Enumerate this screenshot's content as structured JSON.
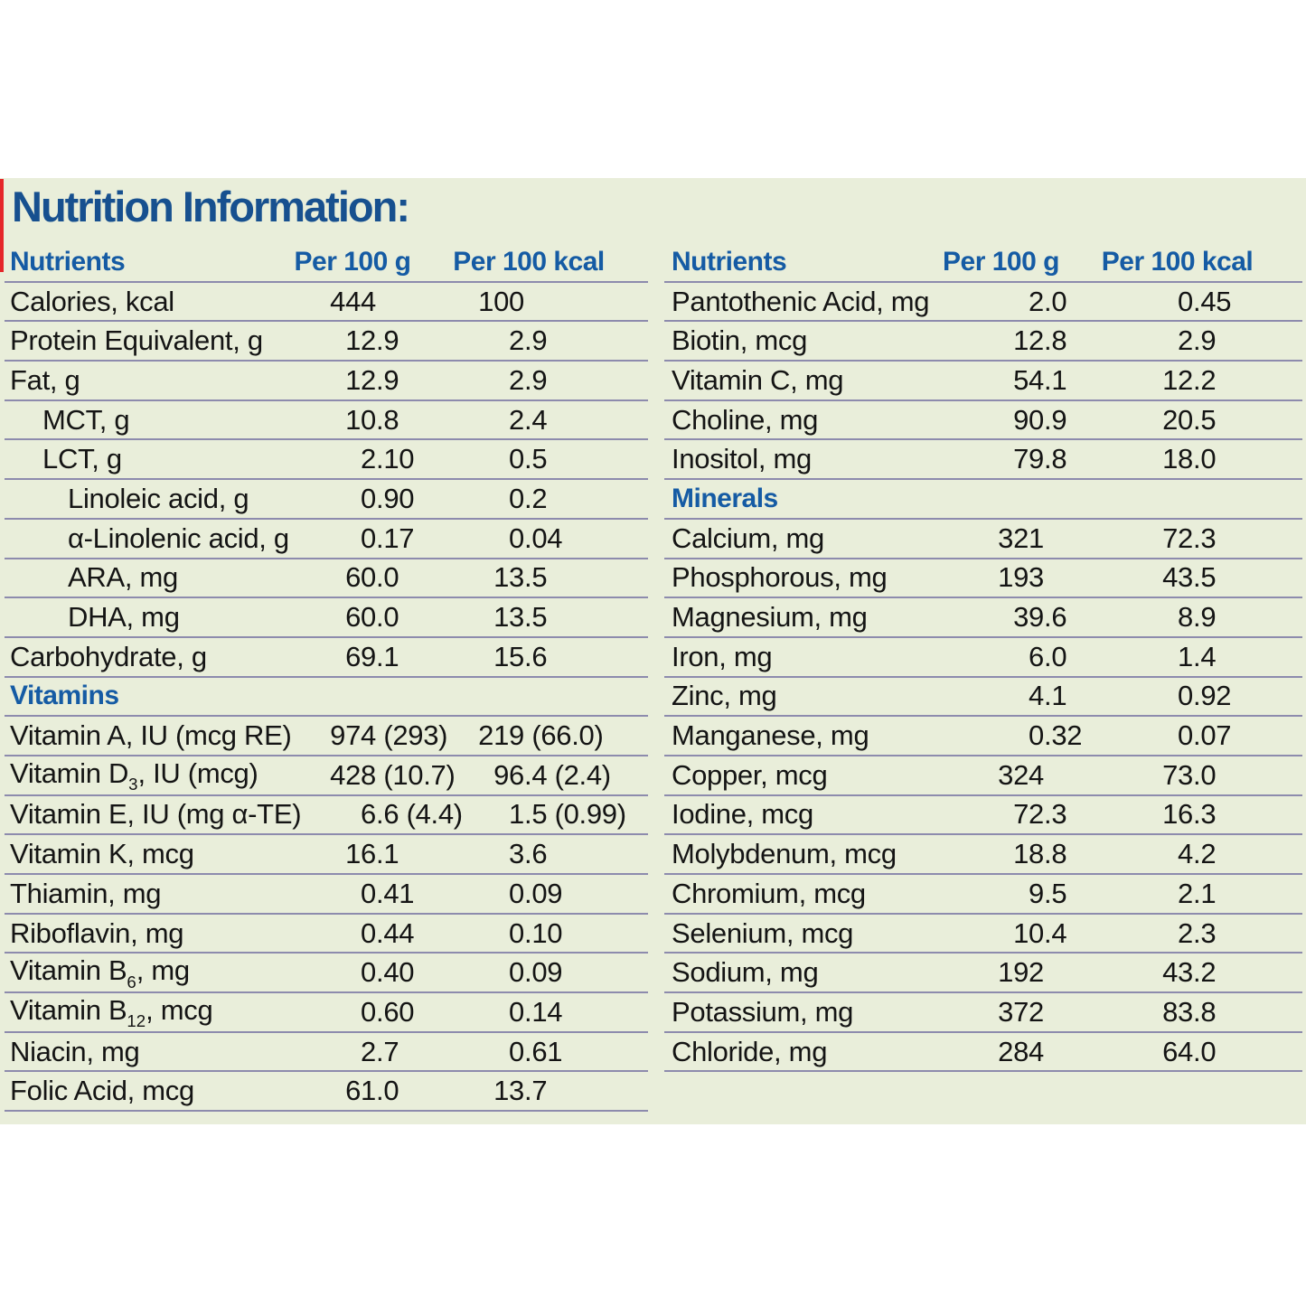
{
  "title": "Nutrition Information:",
  "colors": {
    "panel_background": "#e9eeda",
    "title_blue": "#17508f",
    "column_header_blue": "#155ba4",
    "row_line_purple_gray": "#8d8bad",
    "body_text": "#141414",
    "left_edge_stripe_red": "#e52629"
  },
  "tables": [
    {
      "id": "left",
      "headers": {
        "nutrients": "Nutrients",
        "per_100_g": "Per 100 g",
        "per_100_kcal": "Per 100 kcal"
      },
      "rows": [
        {
          "type": "data",
          "label": "Calories, kcal",
          "g": "444",
          "kcal": "100",
          "indent": 0
        },
        {
          "type": "data",
          "label": "Protein Equivalent, g",
          "g": "12.9",
          "kcal": "2.9",
          "indent": 0
        },
        {
          "type": "data",
          "label": "Fat, g",
          "g": "12.9",
          "kcal": "2.9",
          "indent": 0
        },
        {
          "type": "data",
          "label": "MCT, g",
          "g": "10.8",
          "kcal": "2.4",
          "indent": 1
        },
        {
          "type": "data",
          "label": "LCT, g",
          "g": "2.10",
          "kcal": "0.5",
          "indent": 1
        },
        {
          "type": "data",
          "label": "Linoleic acid, g",
          "g": "0.90",
          "kcal": "0.2",
          "indent": 2
        },
        {
          "type": "data",
          "label": "α-Linolenic acid, g",
          "g": "0.17",
          "kcal": "0.04",
          "indent": 2
        },
        {
          "type": "data",
          "label": "ARA, mg",
          "g": "60.0",
          "kcal": "13.5",
          "indent": 2
        },
        {
          "type": "data",
          "label": "DHA, mg",
          "g": "60.0",
          "kcal": "13.5",
          "indent": 2
        },
        {
          "type": "data",
          "label": "Carbohydrate, g",
          "g": "69.1",
          "kcal": "15.6",
          "indent": 0
        },
        {
          "type": "section",
          "label": "Vitamins"
        },
        {
          "type": "data",
          "label": "Vitamin A, IU (mcg RE)",
          "g": "974 (293)",
          "kcal": "219 (66.0)",
          "indent": 0
        },
        {
          "type": "data",
          "label": "Vitamin D",
          "sub": "3",
          "label_after": ", IU (mcg)",
          "g": "428 (10.7)",
          "kcal": "96.4 (2.4)",
          "indent": 0
        },
        {
          "type": "data",
          "label": "Vitamin E, IU (mg α-TE)",
          "g": "6.6 (4.4)",
          "kcal": "1.5 (0.99)",
          "indent": 0
        },
        {
          "type": "data",
          "label": "Vitamin K, mcg",
          "g": "16.1",
          "kcal": "3.6",
          "indent": 0
        },
        {
          "type": "data",
          "label": "Thiamin, mg",
          "g": "0.41",
          "kcal": "0.09",
          "indent": 0
        },
        {
          "type": "data",
          "label": "Riboflavin, mg",
          "g": "0.44",
          "kcal": "0.10",
          "indent": 0
        },
        {
          "type": "data",
          "label": "Vitamin B",
          "sub": "6",
          "label_after": ", mg",
          "g": "0.40",
          "kcal": "0.09",
          "indent": 0
        },
        {
          "type": "data",
          "label": "Vitamin B",
          "sub": "12",
          "label_after": ", mcg",
          "g": "0.60",
          "kcal": "0.14",
          "indent": 0
        },
        {
          "type": "data",
          "label": "Niacin, mg",
          "g": "2.7",
          "kcal": "0.61",
          "indent": 0
        },
        {
          "type": "data",
          "label": "Folic Acid, mcg",
          "g": "61.0",
          "kcal": "13.7",
          "indent": 0
        }
      ]
    },
    {
      "id": "right",
      "headers": {
        "nutrients": "Nutrients",
        "per_100_g": "Per 100 g",
        "per_100_kcal": "Per 100 kcal"
      },
      "rows": [
        {
          "type": "data",
          "label": "Pantothenic Acid, mg",
          "g": "2.0",
          "kcal": "0.45",
          "indent": 0
        },
        {
          "type": "data",
          "label": "Biotin, mcg",
          "g": "12.8",
          "kcal": "2.9",
          "indent": 0
        },
        {
          "type": "data",
          "label": "Vitamin C, mg",
          "g": "54.1",
          "kcal": "12.2",
          "indent": 0
        },
        {
          "type": "data",
          "label": "Choline, mg",
          "g": "90.9",
          "kcal": "20.5",
          "indent": 0
        },
        {
          "type": "data",
          "label": "Inositol, mg",
          "g": "79.8",
          "kcal": "18.0",
          "indent": 0
        },
        {
          "type": "section",
          "label": "Minerals"
        },
        {
          "type": "data",
          "label": "Calcium, mg",
          "g": "321",
          "kcal": "72.3",
          "indent": 0
        },
        {
          "type": "data",
          "label": "Phosphorous, mg",
          "g": "193",
          "kcal": "43.5",
          "indent": 0
        },
        {
          "type": "data",
          "label": "Magnesium, mg",
          "g": "39.6",
          "kcal": "8.9",
          "indent": 0
        },
        {
          "type": "data",
          "label": "Iron, mg",
          "g": "6.0",
          "kcal": "1.4",
          "indent": 0
        },
        {
          "type": "data",
          "label": "Zinc, mg",
          "g": "4.1",
          "kcal": "0.92",
          "indent": 0
        },
        {
          "type": "data",
          "label": "Manganese, mg",
          "g": "0.32",
          "kcal": "0.07",
          "indent": 0
        },
        {
          "type": "data",
          "label": "Copper, mcg",
          "g": "324",
          "kcal": "73.0",
          "indent": 0
        },
        {
          "type": "data",
          "label": "Iodine, mcg",
          "g": "72.3",
          "kcal": "16.3",
          "indent": 0
        },
        {
          "type": "data",
          "label": "Molybdenum, mcg",
          "g": "18.8",
          "kcal": "4.2",
          "indent": 0
        },
        {
          "type": "data",
          "label": "Chromium, mcg",
          "g": "9.5",
          "kcal": "2.1",
          "indent": 0
        },
        {
          "type": "data",
          "label": "Selenium, mcg",
          "g": "10.4",
          "kcal": "2.3",
          "indent": 0
        },
        {
          "type": "data",
          "label": "Sodium, mg",
          "g": "192",
          "kcal": "43.2",
          "indent": 0
        },
        {
          "type": "data",
          "label": "Potassium, mg",
          "g": "372",
          "kcal": "83.8",
          "indent": 0
        },
        {
          "type": "data",
          "label": "Chloride, mg",
          "g": "284",
          "kcal": "64.0",
          "indent": 0
        }
      ]
    }
  ]
}
